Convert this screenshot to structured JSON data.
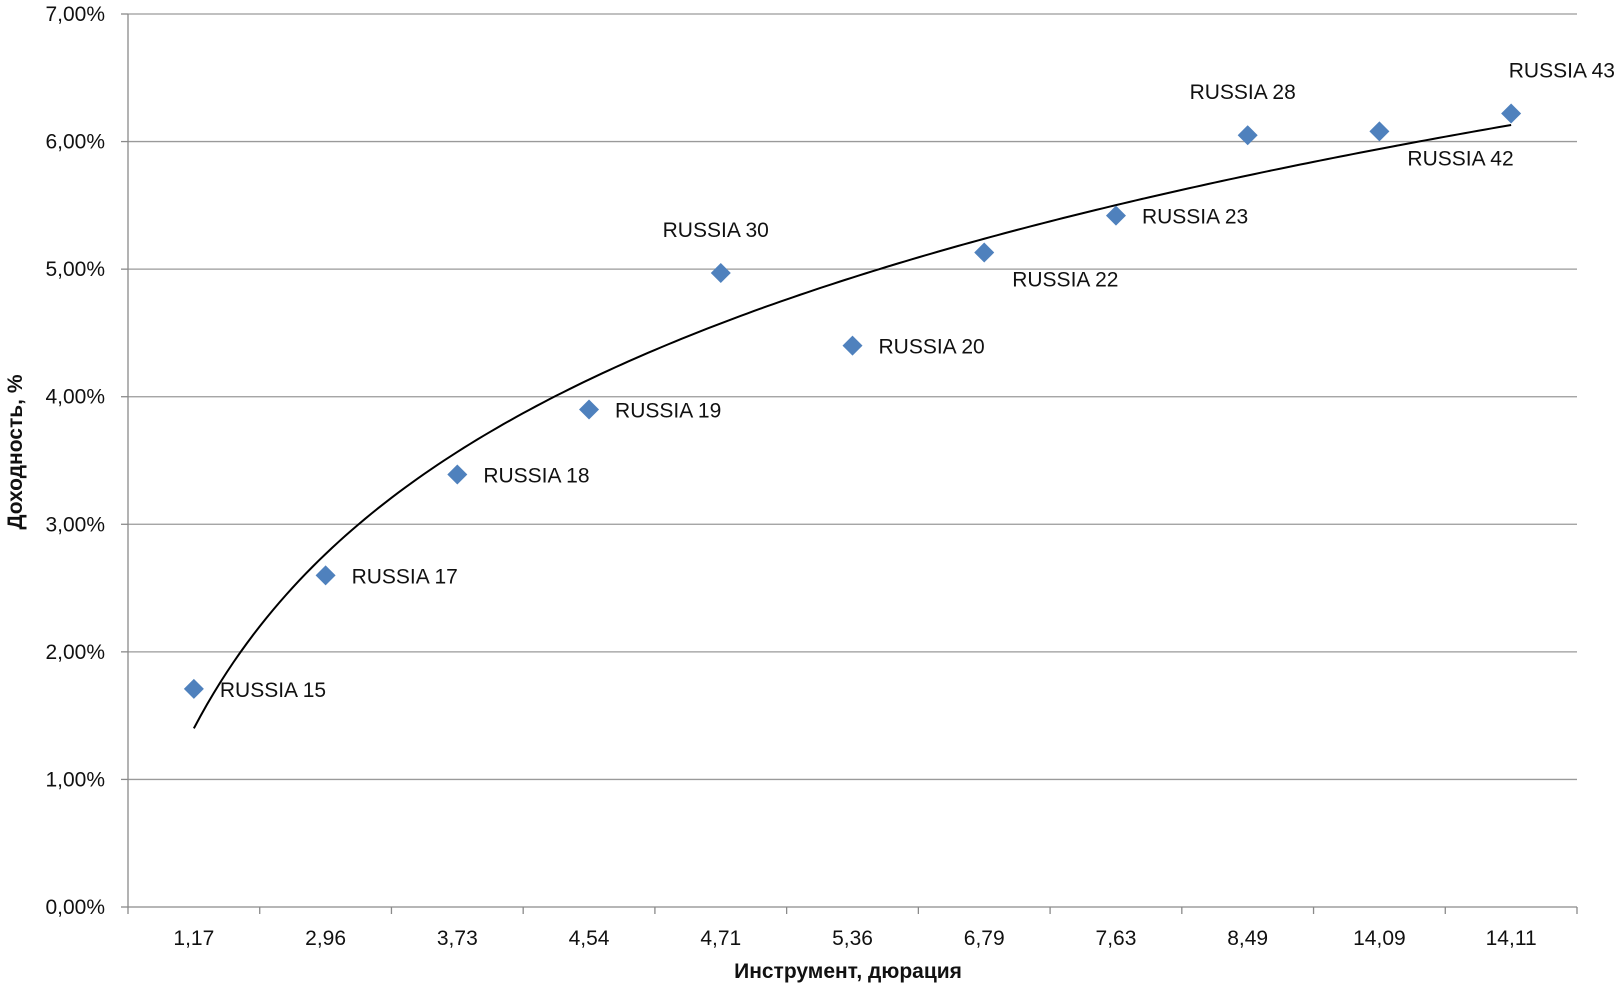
{
  "chart_data": {
    "type": "scatter",
    "title": "",
    "xlabel": "Инструмент, дюрация",
    "ylabel": "Доходность, %",
    "ylim": [
      0,
      7
    ],
    "y_ticks": [
      "0,00%",
      "1,00%",
      "2,00%",
      "3,00%",
      "4,00%",
      "5,00%",
      "6,00%",
      "7,00%"
    ],
    "categories": [
      "1,17",
      "2,96",
      "3,73",
      "4,54",
      "4,71",
      "5,36",
      "6,79",
      "7,63",
      "8,49",
      "14,09",
      "14,11"
    ],
    "points": [
      {
        "x": "1,17",
        "y": 1.71,
        "label": "RUSSIA 15",
        "label_pos": "right"
      },
      {
        "x": "2,96",
        "y": 2.6,
        "label": "RUSSIA 17",
        "label_pos": "right"
      },
      {
        "x": "3,73",
        "y": 3.39,
        "label": "RUSSIA 18",
        "label_pos": "right"
      },
      {
        "x": "4,54",
        "y": 3.9,
        "label": "RUSSIA 19",
        "label_pos": "right"
      },
      {
        "x": "4,71",
        "y": 4.97,
        "label": "RUSSIA 30",
        "label_pos": "above"
      },
      {
        "x": "5,36",
        "y": 4.4,
        "label": "RUSSIA 20",
        "label_pos": "right"
      },
      {
        "x": "6,79",
        "y": 5.13,
        "label": "RUSSIA 22",
        "label_pos": "below-right"
      },
      {
        "x": "7,63",
        "y": 5.42,
        "label": "RUSSIA 23",
        "label_pos": "right"
      },
      {
        "x": "8,49",
        "y": 6.05,
        "label": "RUSSIA 28",
        "label_pos": "above"
      },
      {
        "x": "14,09",
        "y": 6.08,
        "label": "RUSSIA 42",
        "label_pos": "below-right"
      },
      {
        "x": "14,11",
        "y": 6.22,
        "label": "RUSSIA 43",
        "label_pos": "above"
      }
    ],
    "trendline": {
      "type": "logarithmic",
      "color": "#000000",
      "from": [
        1,
        1.4
      ],
      "to": [
        11,
        6.13
      ]
    },
    "marker_color": "#4F81BD",
    "grid": true,
    "legend": "none"
  }
}
